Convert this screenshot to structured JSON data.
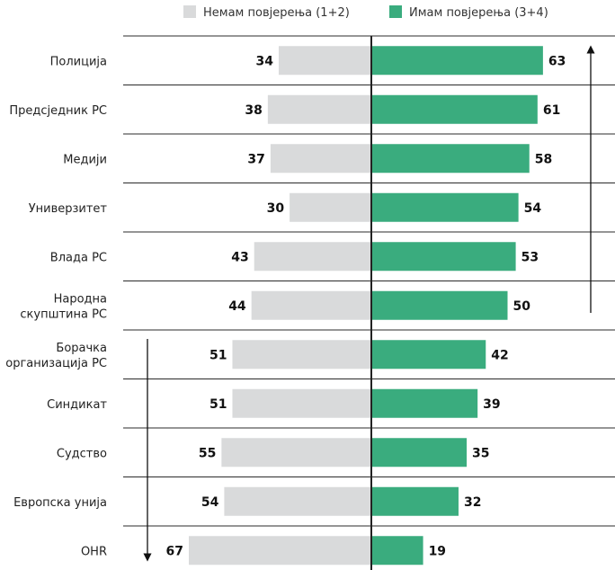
{
  "chart_data": {
    "type": "bar",
    "legend": [
      {
        "label": "Немам повјерења (1+2)",
        "color": "#d9dadb"
      },
      {
        "label": "Имам повјерења (3+4)",
        "color": "#3aac7e"
      }
    ],
    "categories": [
      [
        "Полиција"
      ],
      [
        "Предсједник РС"
      ],
      [
        "Медији"
      ],
      [
        "Универзитет"
      ],
      [
        "Влада РС"
      ],
      [
        "Народна",
        "скупштина РС"
      ],
      [
        "Борачка",
        "организација РС"
      ],
      [
        "Синдикат"
      ],
      [
        "Судство"
      ],
      [
        "Европска унија"
      ],
      [
        "OHR"
      ]
    ],
    "series": [
      {
        "name": "Немам повјерења (1+2)",
        "values": [
          34,
          38,
          37,
          30,
          43,
          44,
          51,
          51,
          55,
          54,
          67
        ]
      },
      {
        "name": "Имам повјерења (3+4)",
        "values": [
          63,
          61,
          58,
          54,
          53,
          50,
          42,
          39,
          35,
          32,
          19
        ]
      }
    ],
    "legend_position": "top",
    "grid": true
  }
}
